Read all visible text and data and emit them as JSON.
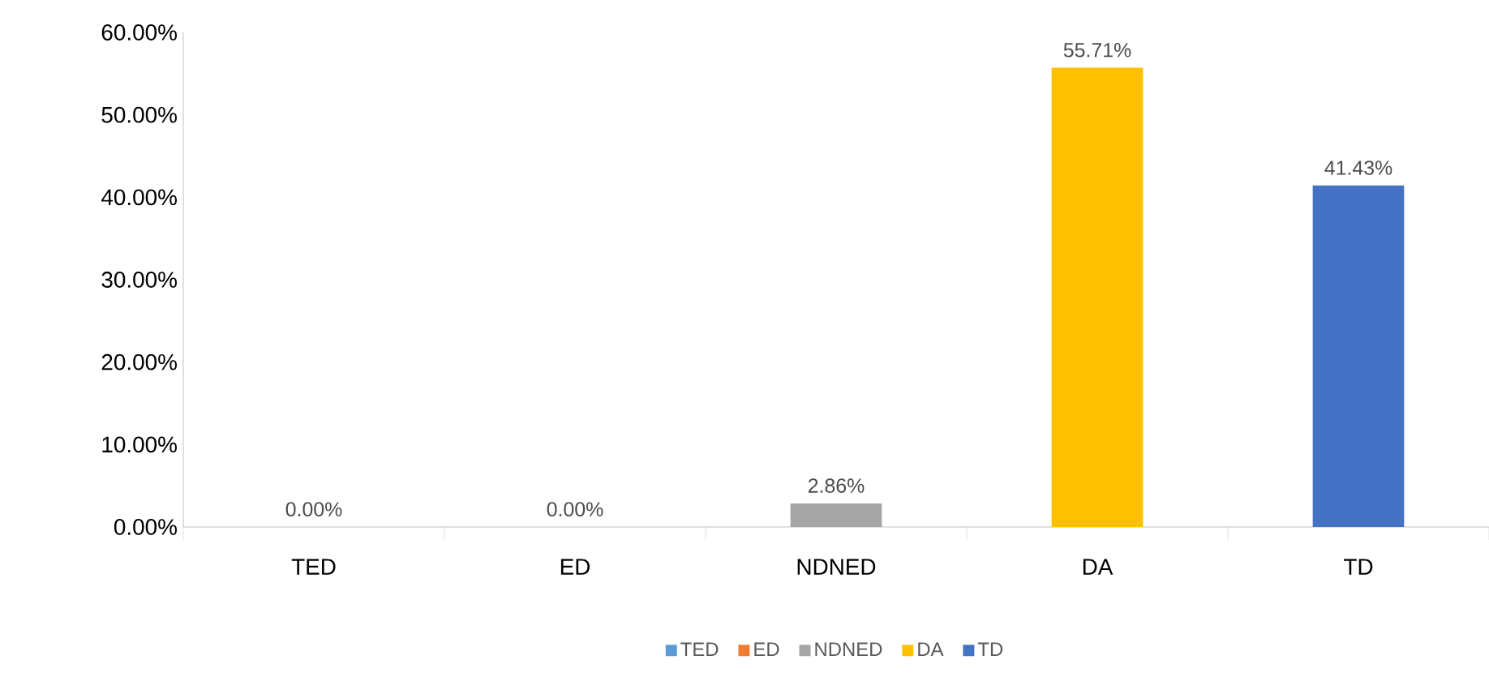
{
  "chart_data": {
    "type": "bar",
    "categories": [
      "TED",
      "ED",
      "NDNED",
      "DA",
      "TD"
    ],
    "series": [
      {
        "name": "TED",
        "color": "#5b9bd5",
        "values": [
          0,
          null,
          null,
          null,
          null
        ],
        "value_labels": [
          "0.00%",
          null,
          null,
          null,
          null
        ]
      },
      {
        "name": "ED",
        "color": "#ed7d31",
        "values": [
          null,
          0,
          null,
          null,
          null
        ],
        "value_labels": [
          null,
          "0.00%",
          null,
          null,
          null
        ]
      },
      {
        "name": "NDNED",
        "color": "#a5a5a5",
        "values": [
          null,
          null,
          2.86,
          null,
          null
        ],
        "value_labels": [
          null,
          null,
          "2.86%",
          null,
          null
        ]
      },
      {
        "name": "DA",
        "color": "#ffc000",
        "values": [
          null,
          null,
          null,
          55.71,
          null
        ],
        "value_labels": [
          null,
          null,
          null,
          "55.71%",
          null
        ]
      },
      {
        "name": "TD",
        "color": "#4472c4",
        "values": [
          null,
          null,
          null,
          null,
          41.43
        ],
        "value_labels": [
          null,
          null,
          null,
          null,
          "41.43%"
        ]
      }
    ],
    "ylim": [
      0,
      60
    ],
    "yticks": [
      {
        "value": 0,
        "label": "0.00%"
      },
      {
        "value": 10,
        "label": "10.00%"
      },
      {
        "value": 20,
        "label": "20.00%"
      },
      {
        "value": 30,
        "label": "30.00%"
      },
      {
        "value": 40,
        "label": "40.00%"
      },
      {
        "value": 50,
        "label": "50.00%"
      },
      {
        "value": 60,
        "label": "60.00%"
      }
    ],
    "grid": false,
    "legend": "bottom"
  }
}
